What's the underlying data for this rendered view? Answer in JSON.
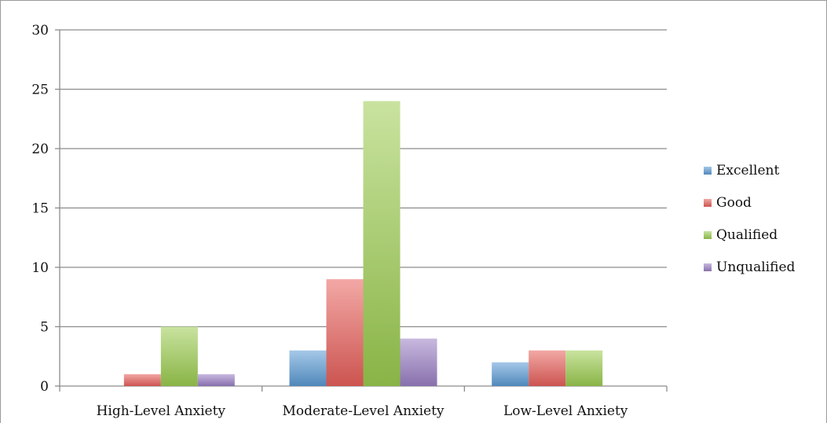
{
  "chart_data": {
    "type": "bar",
    "title": "",
    "xlabel": "",
    "ylabel": "",
    "categories": [
      "High-Level Anxiety",
      "Moderate-Level Anxiety",
      "Low-Level Anxiety"
    ],
    "series": [
      {
        "name": "Excellent",
        "values": [
          0,
          3,
          2
        ],
        "color": "#5b9bd5"
      },
      {
        "name": "Good",
        "values": [
          1,
          9,
          3
        ],
        "color": "#e8605b"
      },
      {
        "name": "Qualified",
        "values": [
          5,
          24,
          3
        ],
        "color": "#9ccc50"
      },
      {
        "name": "Unqualified",
        "values": [
          1,
          4,
          0
        ],
        "color": "#9b7fc4"
      }
    ],
    "ylim": [
      0,
      30
    ],
    "yticks": [
      "0",
      "5",
      "10",
      "15",
      "20",
      "25",
      "30"
    ],
    "grid": true,
    "legend": "right"
  }
}
